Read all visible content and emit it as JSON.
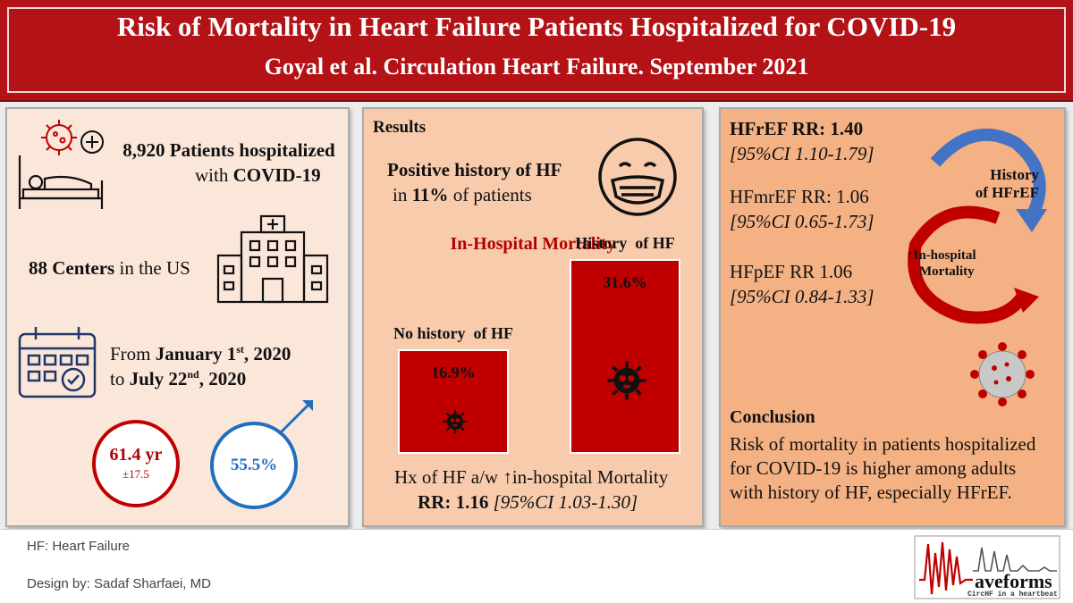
{
  "header": {
    "title": "Risk of Mortality in Heart Failure Patients Hospitalized for COVID-19",
    "subtitle": "Goyal et al. Circulation Heart Failure. September 2021"
  },
  "left": {
    "patients_bold": "8,920 Patients hospitalized",
    "patients_rest": "with ",
    "patients_covid": "COVID-19",
    "centers_bold": "88 Centers",
    "centers_rest": " in the US",
    "dates_from": "From ",
    "dates_from_bold": "January 1",
    "dates_from_sup": "st",
    "dates_from_year": ", 2020",
    "dates_to": "to ",
    "dates_to_bold": "July 22",
    "dates_to_sup": "nd",
    "dates_to_year": ", 2020",
    "age_value": "61.4 yr",
    "age_sd": "±17.5",
    "male_pct": "55.5%"
  },
  "middle": {
    "heading": "Results",
    "hf_line1": "Positive history of HF",
    "hf_line2_pre": "in ",
    "hf_line2_bold": "11%",
    "hf_line2_post": " of patients",
    "mortality_heading": "In-Hospital Mortality",
    "bars": [
      {
        "label": "No history  of HF",
        "value": 16.9,
        "value_label": "16.9%"
      },
      {
        "label": "History  of HF",
        "value": 31.6,
        "value_label": "31.6%"
      }
    ],
    "assoc_line": "Hx of HF a/w ↑in-hospital Mortality",
    "rr_bold": "RR: 1.16",
    "rr_ci": " [95%CI 1.03-1.30]"
  },
  "right": {
    "hfref_rr": "HFrEF RR: 1.40",
    "hfref_ci": "[95%CI 1.10-1.79]",
    "hfmref_rr": "HFmrEF RR: 1.06",
    "hfmref_ci": "[95%CI 0.65-1.73]",
    "hfpef_rr": "HFpEF RR 1.06",
    "hfpef_ci": "[95%CI 0.84-1.33]",
    "cycle_top_1": "History",
    "cycle_top_2": "of HFrEF",
    "cycle_bottom_1": "↑In-hospital",
    "cycle_bottom_2": "Mortality",
    "conclusion_heading": "Conclusion",
    "conclusion_lines": [
      "Risk of mortality in patients hospitalized",
      "for COVID-19 is higher among adults",
      "with history of HF, especially HFrEF."
    ]
  },
  "footer": {
    "abbrev": "HF: Heart Failure",
    "design": "Design by: Sadaf Sharfaei, MD",
    "logo_word": "aveforms",
    "logo_tag": "CircHF in a heartbeat"
  },
  "colors": {
    "brand_red": "#b31217",
    "bar_red": "#c00000",
    "blue": "#1f6fc0",
    "panel_light": "#fbe6da",
    "panel_mid": "#f8cbad",
    "panel_dark": "#f4b183"
  },
  "icons": [
    "virus-icon",
    "plus-icon",
    "hospital-bed-icon",
    "hospital-building-icon",
    "calendar-icon",
    "male-symbol-icon",
    "face-mask-icon",
    "skull-virus-icon",
    "cycle-arrows-icon",
    "coronavirus-icon",
    "ecg-logo-icon"
  ]
}
